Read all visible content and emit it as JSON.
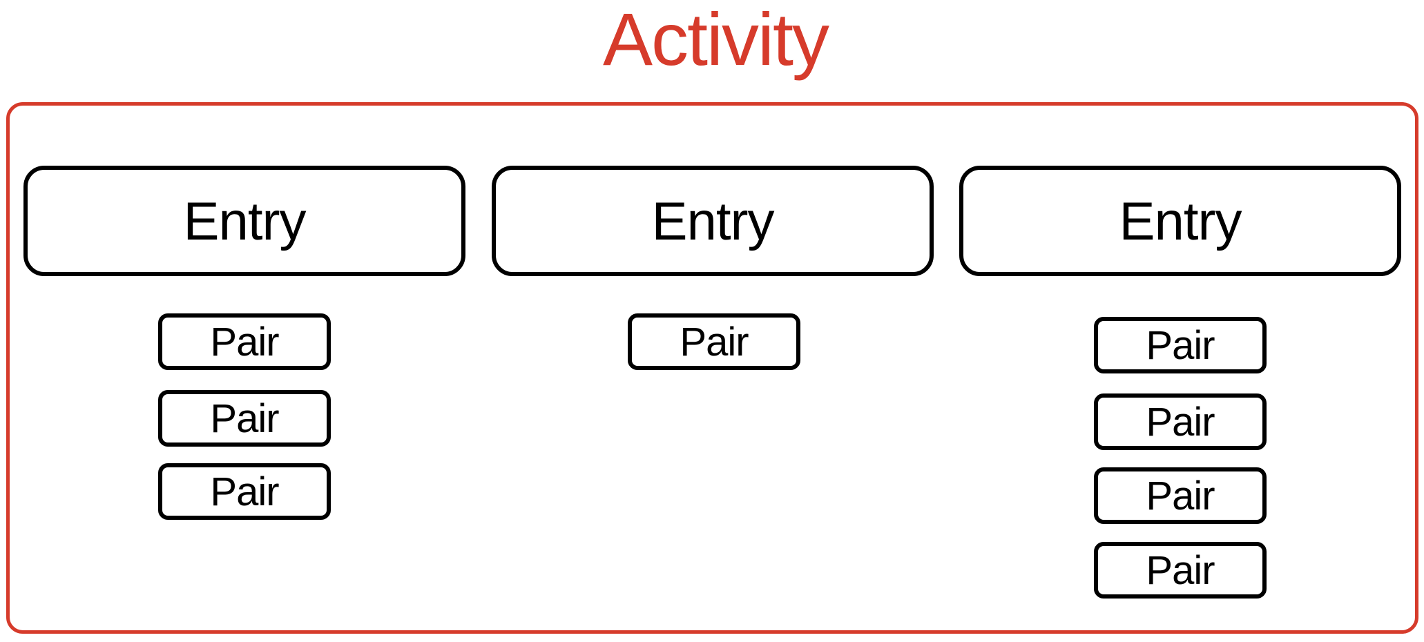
{
  "title": "Activity",
  "colors": {
    "accent": "#d63b2b",
    "stroke": "#000000",
    "background": "#ffffff"
  },
  "entries": [
    {
      "label": "Entry",
      "pairs": [
        "Pair",
        "Pair",
        "Pair"
      ]
    },
    {
      "label": "Entry",
      "pairs": [
        "Pair"
      ]
    },
    {
      "label": "Entry",
      "pairs": [
        "Pair",
        "Pair",
        "Pair",
        "Pair"
      ]
    }
  ]
}
